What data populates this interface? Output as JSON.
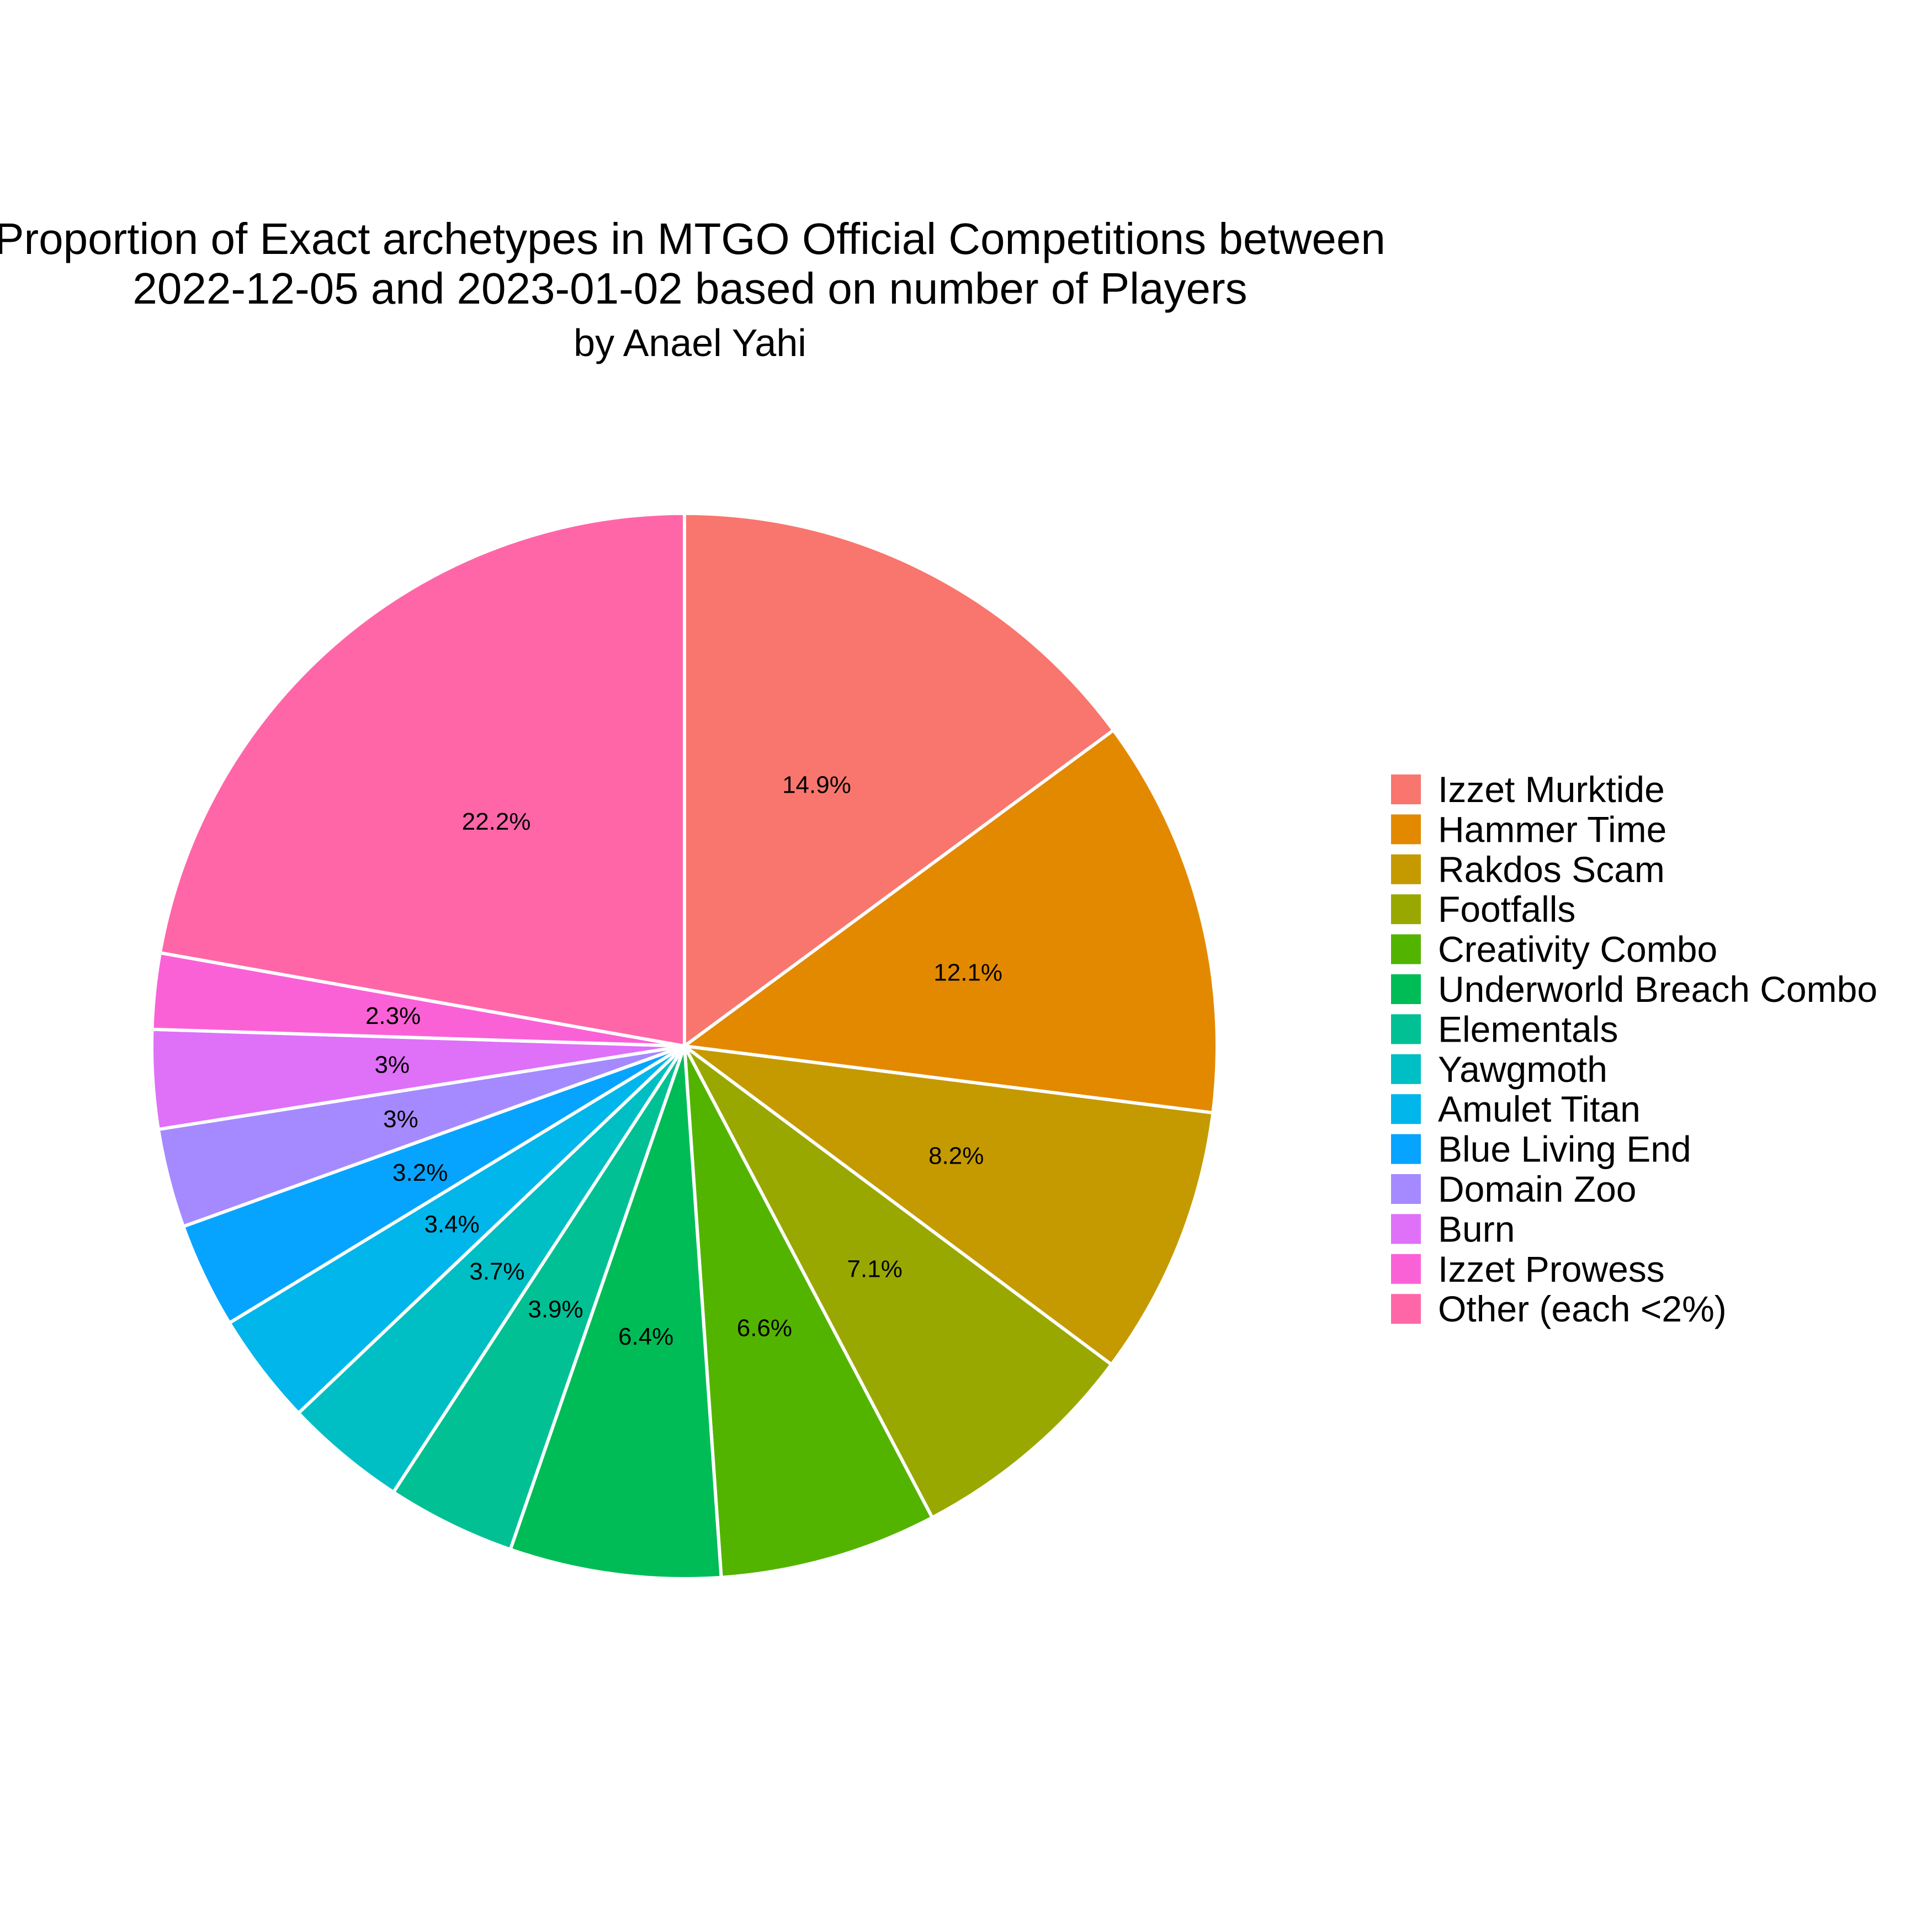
{
  "chart_data": {
    "type": "pie",
    "title_lines": [
      "Proportion of Exact archetypes in MTGO Official Competitions between",
      "2022-12-05 and 2023-01-02 based on number of Players"
    ],
    "subtitle": "by Anael Yahi",
    "slices": [
      {
        "name": "Izzet Murktide",
        "value": 14.9,
        "label": "14.9%",
        "color": "#F8766D"
      },
      {
        "name": "Hammer Time",
        "value": 12.1,
        "label": "12.1%",
        "color": "#E38900"
      },
      {
        "name": "Rakdos Scam",
        "value": 8.2,
        "label": "8.2%",
        "color": "#C49A00"
      },
      {
        "name": "Footfalls",
        "value": 7.1,
        "label": "7.1%",
        "color": "#99A800"
      },
      {
        "name": "Creativity Combo",
        "value": 6.6,
        "label": "6.6%",
        "color": "#53B400"
      },
      {
        "name": "Underworld Breach Combo",
        "value": 6.4,
        "label": "6.4%",
        "color": "#00BC56"
      },
      {
        "name": "Elementals",
        "value": 3.9,
        "label": "3.9%",
        "color": "#00C094"
      },
      {
        "name": "Yawgmoth",
        "value": 3.7,
        "label": "3.7%",
        "color": "#00BFC4"
      },
      {
        "name": "Amulet Titan",
        "value": 3.4,
        "label": "3.4%",
        "color": "#00B6EB"
      },
      {
        "name": "Blue Living End",
        "value": 3.2,
        "label": "3.2%",
        "color": "#06A4FF"
      },
      {
        "name": "Domain Zoo",
        "value": 3.0,
        "label": "3%",
        "color": "#A58AFF"
      },
      {
        "name": "Burn",
        "value": 3.0,
        "label": "3%",
        "color": "#DF70F8"
      },
      {
        "name": "Izzet Prowess",
        "value": 2.3,
        "label": "2.3%",
        "color": "#FB61D7"
      },
      {
        "name": "Other (each <2%)",
        "value": 22.2,
        "label": "22.2%",
        "color": "#FF66A8"
      }
    ],
    "direction": "clockwise from top",
    "legend_position": "right"
  }
}
